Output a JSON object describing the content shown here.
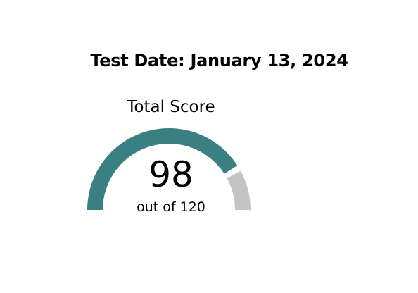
{
  "header": {
    "test_date": "Test Date: January 13, 2024"
  },
  "score": {
    "title": "Total Score",
    "value": 98,
    "max": 120,
    "subtitle": "out of 120",
    "fill_color": "#3a7f82",
    "track_color": "#c4c4c4"
  }
}
